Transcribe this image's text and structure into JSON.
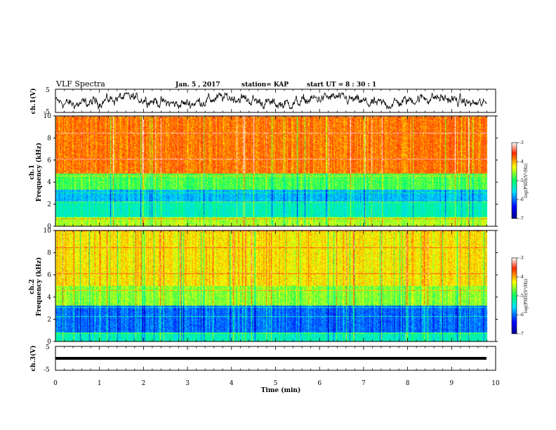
{
  "header": {
    "title": "VLF Spectra",
    "date": "Jan. 5 , 2017",
    "station": "station= KAP",
    "start_label": "start UT =",
    "start_time": "8 : 30 : 1"
  },
  "chart_data": [
    {
      "type": "line",
      "panel": "ch1-waveform",
      "ylabel": "ch.1(V)",
      "ylim": [
        -5,
        5
      ],
      "ytick_labels": [
        "5",
        "-5"
      ],
      "xlim": [
        0,
        10
      ],
      "trace_color": "#000000",
      "description_level": "noisy waveform between approx -3 and 3 V"
    },
    {
      "type": "heatmap",
      "panel": "ch1-spectrogram",
      "ylabel": "ch.1\nFrequency (kHz)",
      "ylabel_line1": "ch.1",
      "ylabel_line2": "Frequency (kHz)",
      "ylim": [
        0,
        10
      ],
      "ytick_labels": [
        "0",
        "2",
        "4",
        "6",
        "8",
        "10"
      ],
      "xlim": [
        0,
        10
      ],
      "color_scale": {
        "min": -7,
        "max": -3,
        "tick_labels": [
          "-3",
          "-4",
          "-5",
          "-6",
          "-7"
        ],
        "label": "log(PSD)(V²/Hz)"
      },
      "bands": [
        {
          "freq_range": [
            0,
            0.8
          ],
          "level": -4.5
        },
        {
          "freq_range": [
            0.8,
            2.2
          ],
          "level": -5.3
        },
        {
          "freq_range": [
            2.2,
            3.3
          ],
          "level": -5.7
        },
        {
          "freq_range": [
            3.3,
            4.8
          ],
          "level": -4.8
        },
        {
          "freq_range": [
            4.8,
            10
          ],
          "level": -3.8
        }
      ]
    },
    {
      "type": "heatmap",
      "panel": "ch2-spectrogram",
      "ylabel": "ch.2\nFrequency (kHz)",
      "ylabel_line1": "ch.2",
      "ylabel_line2": "Frequency (kHz)",
      "ylim": [
        0,
        10
      ],
      "ytick_labels": [
        "0",
        "2",
        "4",
        "6",
        "8",
        "10"
      ],
      "xlim": [
        0,
        10
      ],
      "color_scale": {
        "min": -7,
        "max": -3,
        "tick_labels": [
          "-3",
          "-4",
          "-5",
          "-6",
          "-7"
        ],
        "label": "log(PSD)(V²/Hz)"
      },
      "bands": [
        {
          "freq_range": [
            0,
            0.8
          ],
          "level": -5.3
        },
        {
          "freq_range": [
            0.8,
            3.2
          ],
          "level": -6.0
        },
        {
          "freq_range": [
            3.2,
            5.0
          ],
          "level": -4.6
        },
        {
          "freq_range": [
            5.0,
            10
          ],
          "level": -4.2
        }
      ]
    },
    {
      "type": "line",
      "panel": "ch3-waveform",
      "ylabel": "ch.3(V)",
      "ylim": [
        -5,
        5
      ],
      "ytick_labels": [
        "5",
        "-5"
      ],
      "xlim": [
        0,
        10
      ],
      "constant_value": 0,
      "trace_color": "#000000"
    }
  ],
  "x_axis": {
    "label": "Time (min)",
    "tick_labels": [
      "0",
      "1",
      "2",
      "3",
      "4",
      "5",
      "6",
      "7",
      "8",
      "9",
      "10"
    ]
  },
  "colormap": [
    "#000088",
    "#0000ff",
    "#00e0ff",
    "#00ff66",
    "#ffff00",
    "#ff2a00",
    "#ffffff"
  ]
}
